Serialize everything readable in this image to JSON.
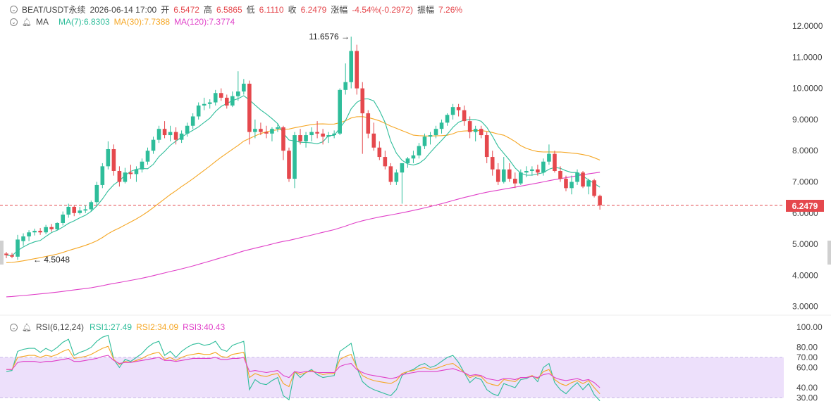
{
  "header": {
    "symbol": "BEAT/USDT永续",
    "datetime": "2026-06-14 17:00",
    "open_label": "开",
    "open": "6.5472",
    "high_label": "高",
    "high": "6.5865",
    "low_label": "低",
    "low": "6.1110",
    "close_label": "收",
    "close": "6.2479",
    "change_label": "涨幅",
    "change": "-4.54%(-0.2972)",
    "amp_label": "振幅",
    "amp": "7.26%"
  },
  "ma_legend": {
    "name": "MA",
    "ma7": "MA(7):6.8303",
    "ma30": "MA(30):7.7388",
    "ma120": "MA(120):7.3774"
  },
  "rsi_legend": {
    "name": "RSI(6,12,24)",
    "rsi1": "RSI1:27.49",
    "rsi2": "RSI2:34.09",
    "rsi3": "RSI3:40.43"
  },
  "colors": {
    "up": "#2ebd9a",
    "down": "#e5484d",
    "ma7": "#2ebd9a",
    "ma30": "#f5a623",
    "ma120": "#e040c8",
    "rsi1": "#2ebd9a",
    "rsi2": "#f5a623",
    "rsi3": "#e040c8",
    "rsi_band": "#ede0fb"
  },
  "chart_data": [
    {
      "type": "candlestick",
      "price_axis": [
        "12.0000",
        "11.0000",
        "10.0000",
        "9.0000",
        "8.0000",
        "7.0000",
        "6.0000",
        "5.0000",
        "4.0000",
        "3.0000"
      ],
      "ylim": [
        3,
        12
      ],
      "last_price": "6.2479",
      "max_marker": "11.6576",
      "min_marker": "4.5048",
      "candles": [
        [
          4.7,
          4.75,
          4.55,
          4.65
        ],
        [
          4.65,
          4.72,
          4.55,
          4.6
        ],
        [
          4.6,
          5.3,
          4.5,
          5.15
        ],
        [
          5.1,
          5.35,
          4.95,
          5.25
        ],
        [
          5.25,
          5.45,
          5.1,
          5.38
        ],
        [
          5.38,
          5.5,
          5.28,
          5.43
        ],
        [
          5.43,
          5.52,
          5.3,
          5.38
        ],
        [
          5.38,
          5.62,
          5.32,
          5.55
        ],
        [
          5.55,
          5.65,
          5.4,
          5.48
        ],
        [
          5.48,
          5.7,
          5.45,
          5.68
        ],
        [
          5.68,
          6.05,
          5.6,
          5.95
        ],
        [
          5.95,
          6.3,
          5.85,
          6.2
        ],
        [
          6.2,
          6.25,
          5.9,
          6.0
        ],
        [
          6.0,
          6.2,
          5.95,
          6.08
        ],
        [
          6.08,
          6.25,
          6.0,
          6.12
        ],
        [
          6.12,
          6.4,
          6.05,
          6.35
        ],
        [
          6.35,
          7.0,
          6.25,
          6.9
        ],
        [
          6.9,
          7.6,
          6.8,
          7.5
        ],
        [
          7.5,
          8.3,
          7.4,
          8.05
        ],
        [
          8.05,
          8.2,
          7.2,
          7.35
        ],
        [
          7.35,
          7.5,
          6.85,
          7.0
        ],
        [
          7.0,
          7.45,
          6.95,
          7.3
        ],
        [
          7.3,
          7.55,
          7.1,
          7.25
        ],
        [
          7.25,
          7.5,
          7.0,
          7.4
        ],
        [
          7.4,
          7.75,
          7.3,
          7.65
        ],
        [
          7.65,
          8.1,
          7.55,
          8.0
        ],
        [
          8.0,
          8.45,
          7.9,
          8.35
        ],
        [
          8.35,
          8.8,
          8.25,
          8.7
        ],
        [
          8.7,
          8.95,
          8.4,
          8.5
        ],
        [
          8.5,
          8.8,
          8.3,
          8.6
        ],
        [
          8.6,
          8.75,
          8.2,
          8.35
        ],
        [
          8.35,
          8.65,
          8.25,
          8.55
        ],
        [
          8.55,
          8.9,
          8.45,
          8.8
        ],
        [
          8.8,
          9.2,
          8.7,
          9.1
        ],
        [
          9.1,
          9.55,
          9.0,
          9.45
        ],
        [
          9.45,
          9.7,
          9.3,
          9.5
        ],
        [
          9.5,
          9.65,
          9.35,
          9.55
        ],
        [
          9.55,
          9.95,
          9.45,
          9.85
        ],
        [
          9.85,
          10.0,
          9.6,
          9.7
        ],
        [
          9.7,
          9.8,
          9.35,
          9.45
        ],
        [
          9.45,
          9.9,
          9.4,
          9.75
        ],
        [
          9.75,
          10.55,
          9.6,
          9.9
        ],
        [
          9.9,
          10.3,
          9.8,
          10.15
        ],
        [
          10.15,
          10.25,
          8.2,
          8.6
        ],
        [
          8.6,
          9.0,
          8.4,
          8.7
        ],
        [
          8.7,
          8.9,
          8.5,
          8.6
        ],
        [
          8.6,
          8.8,
          8.4,
          8.55
        ],
        [
          8.55,
          8.75,
          8.3,
          8.7
        ],
        [
          8.7,
          8.85,
          8.6,
          8.75
        ],
        [
          8.75,
          8.8,
          7.7,
          8.0
        ],
        [
          8.0,
          8.1,
          7.0,
          7.1
        ],
        [
          7.1,
          8.6,
          6.8,
          8.5
        ],
        [
          8.5,
          8.7,
          8.2,
          8.3
        ],
        [
          8.3,
          8.6,
          8.1,
          8.5
        ],
        [
          8.5,
          8.75,
          8.3,
          8.6
        ],
        [
          8.6,
          8.95,
          8.4,
          8.55
        ],
        [
          8.55,
          8.7,
          8.2,
          8.45
        ],
        [
          8.45,
          8.6,
          8.25,
          8.5
        ],
        [
          8.5,
          8.65,
          8.4,
          8.55
        ],
        [
          8.55,
          10.0,
          8.5,
          9.95
        ],
        [
          9.95,
          10.8,
          9.8,
          10.2
        ],
        [
          10.2,
          11.66,
          10.0,
          11.2
        ],
        [
          11.2,
          11.4,
          9.8,
          10.0
        ],
        [
          10.0,
          10.2,
          7.9,
          9.2
        ],
        [
          9.2,
          9.3,
          8.4,
          8.55
        ],
        [
          8.55,
          8.9,
          8.0,
          8.1
        ],
        [
          8.1,
          8.3,
          7.7,
          7.8
        ],
        [
          7.8,
          8.0,
          7.4,
          7.5
        ],
        [
          7.5,
          7.6,
          6.9,
          7.0
        ],
        [
          7.0,
          7.4,
          6.9,
          7.3
        ],
        [
          7.3,
          7.6,
          6.3,
          7.6
        ],
        [
          7.6,
          7.8,
          7.45,
          7.75
        ],
        [
          7.75,
          8.0,
          7.6,
          7.85
        ],
        [
          7.85,
          8.25,
          7.75,
          8.15
        ],
        [
          8.15,
          8.55,
          8.05,
          8.45
        ],
        [
          8.45,
          8.6,
          8.2,
          8.5
        ],
        [
          8.5,
          8.8,
          8.4,
          8.7
        ],
        [
          8.7,
          9.0,
          8.55,
          8.9
        ],
        [
          8.9,
          9.2,
          8.8,
          9.15
        ],
        [
          9.15,
          9.5,
          9.0,
          9.4
        ],
        [
          9.4,
          9.5,
          9.1,
          9.3
        ],
        [
          9.3,
          9.45,
          8.8,
          8.95
        ],
        [
          8.95,
          9.1,
          8.4,
          8.6
        ],
        [
          8.6,
          8.8,
          8.3,
          8.7
        ],
        [
          8.7,
          8.8,
          8.4,
          8.5
        ],
        [
          8.5,
          8.6,
          7.6,
          7.8
        ],
        [
          7.8,
          8.0,
          7.2,
          7.4
        ],
        [
          7.4,
          7.6,
          6.9,
          7.0
        ],
        [
          7.0,
          7.8,
          6.95,
          7.4
        ],
        [
          7.4,
          7.6,
          7.0,
          7.1
        ],
        [
          7.1,
          7.3,
          6.8,
          6.95
        ],
        [
          6.95,
          7.4,
          6.9,
          7.3
        ],
        [
          7.3,
          7.5,
          7.15,
          7.35
        ],
        [
          7.35,
          7.5,
          7.2,
          7.4
        ],
        [
          7.4,
          7.55,
          7.2,
          7.3
        ],
        [
          7.3,
          7.75,
          7.2,
          7.65
        ],
        [
          7.65,
          8.2,
          7.55,
          7.9
        ],
        [
          7.9,
          8.0,
          7.3,
          7.35
        ],
        [
          7.35,
          7.5,
          7.0,
          7.1
        ],
        [
          7.1,
          7.2,
          6.7,
          6.8
        ],
        [
          6.8,
          7.2,
          6.6,
          7.0
        ],
        [
          7.0,
          7.4,
          6.9,
          7.3
        ],
        [
          7.3,
          7.35,
          6.8,
          6.85
        ],
        [
          6.85,
          7.1,
          6.6,
          7.05
        ],
        [
          7.05,
          7.1,
          6.5,
          6.55
        ],
        [
          6.55,
          6.59,
          6.11,
          6.25
        ]
      ]
    },
    {
      "type": "line",
      "rsi_axis": [
        "100.00",
        "80.00",
        "70.00",
        "60.00",
        "40.00",
        "30.00"
      ],
      "ylim": [
        30,
        100
      ],
      "band": [
        30,
        70
      ],
      "series": [
        {
          "name": "RSI1",
          "values": [
            56,
            57,
            76,
            78,
            79,
            79,
            75,
            79,
            76,
            80,
            85,
            88,
            72,
            75,
            77,
            80,
            86,
            90,
            92,
            68,
            60,
            68,
            66,
            70,
            74,
            80,
            84,
            86,
            72,
            76,
            70,
            76,
            80,
            83,
            84,
            82,
            83,
            86,
            78,
            76,
            82,
            84,
            86,
            38,
            48,
            44,
            43,
            47,
            50,
            32,
            28,
            56,
            50,
            55,
            58,
            53,
            50,
            51,
            52,
            76,
            80,
            84,
            60,
            46,
            41,
            38,
            36,
            34,
            32,
            38,
            52,
            56,
            58,
            62,
            64,
            60,
            62,
            66,
            70,
            72,
            65,
            55,
            45,
            50,
            48,
            38,
            34,
            32,
            44,
            42,
            40,
            48,
            49,
            52,
            46,
            60,
            64,
            45,
            38,
            34,
            40,
            45,
            38,
            44,
            33,
            27
          ]
        },
        {
          "name": "RSI2",
          "values": [
            58,
            58,
            70,
            71,
            72,
            72,
            70,
            72,
            71,
            73,
            76,
            78,
            69,
            70,
            71,
            73,
            76,
            79,
            81,
            68,
            63,
            66,
            65,
            67,
            69,
            72,
            74,
            75,
            68,
            70,
            67,
            70,
            72,
            73,
            74,
            73,
            73,
            75,
            71,
            70,
            73,
            74,
            75,
            50,
            54,
            52,
            51,
            53,
            54,
            44,
            41,
            56,
            53,
            55,
            57,
            55,
            53,
            54,
            54,
            68,
            71,
            73,
            60,
            52,
            49,
            47,
            46,
            45,
            44,
            47,
            54,
            56,
            57,
            59,
            60,
            58,
            59,
            61,
            63,
            64,
            60,
            55,
            50,
            52,
            51,
            45,
            43,
            42,
            48,
            47,
            46,
            50,
            50,
            52,
            49,
            56,
            58,
            48,
            44,
            42,
            45,
            47,
            44,
            47,
            40,
            34
          ]
        },
        {
          "name": "RSI3",
          "values": [
            58,
            58,
            65,
            66,
            66,
            66,
            65,
            66,
            66,
            67,
            68,
            69,
            66,
            66,
            67,
            68,
            69,
            71,
            72,
            67,
            64,
            65,
            65,
            66,
            67,
            68,
            69,
            70,
            67,
            67,
            66,
            67,
            68,
            69,
            69,
            69,
            69,
            70,
            68,
            68,
            69,
            69,
            70,
            56,
            57,
            56,
            55,
            56,
            57,
            52,
            50,
            56,
            55,
            56,
            56,
            55,
            55,
            55,
            55,
            61,
            63,
            64,
            58,
            55,
            53,
            52,
            51,
            50,
            49,
            50,
            53,
            54,
            55,
            56,
            56,
            56,
            56,
            57,
            58,
            59,
            57,
            55,
            52,
            53,
            52,
            49,
            48,
            47,
            49,
            49,
            48,
            50,
            50,
            51,
            50,
            53,
            54,
            50,
            48,
            47,
            48,
            49,
            47,
            48,
            45,
            40
          ]
        }
      ]
    }
  ]
}
